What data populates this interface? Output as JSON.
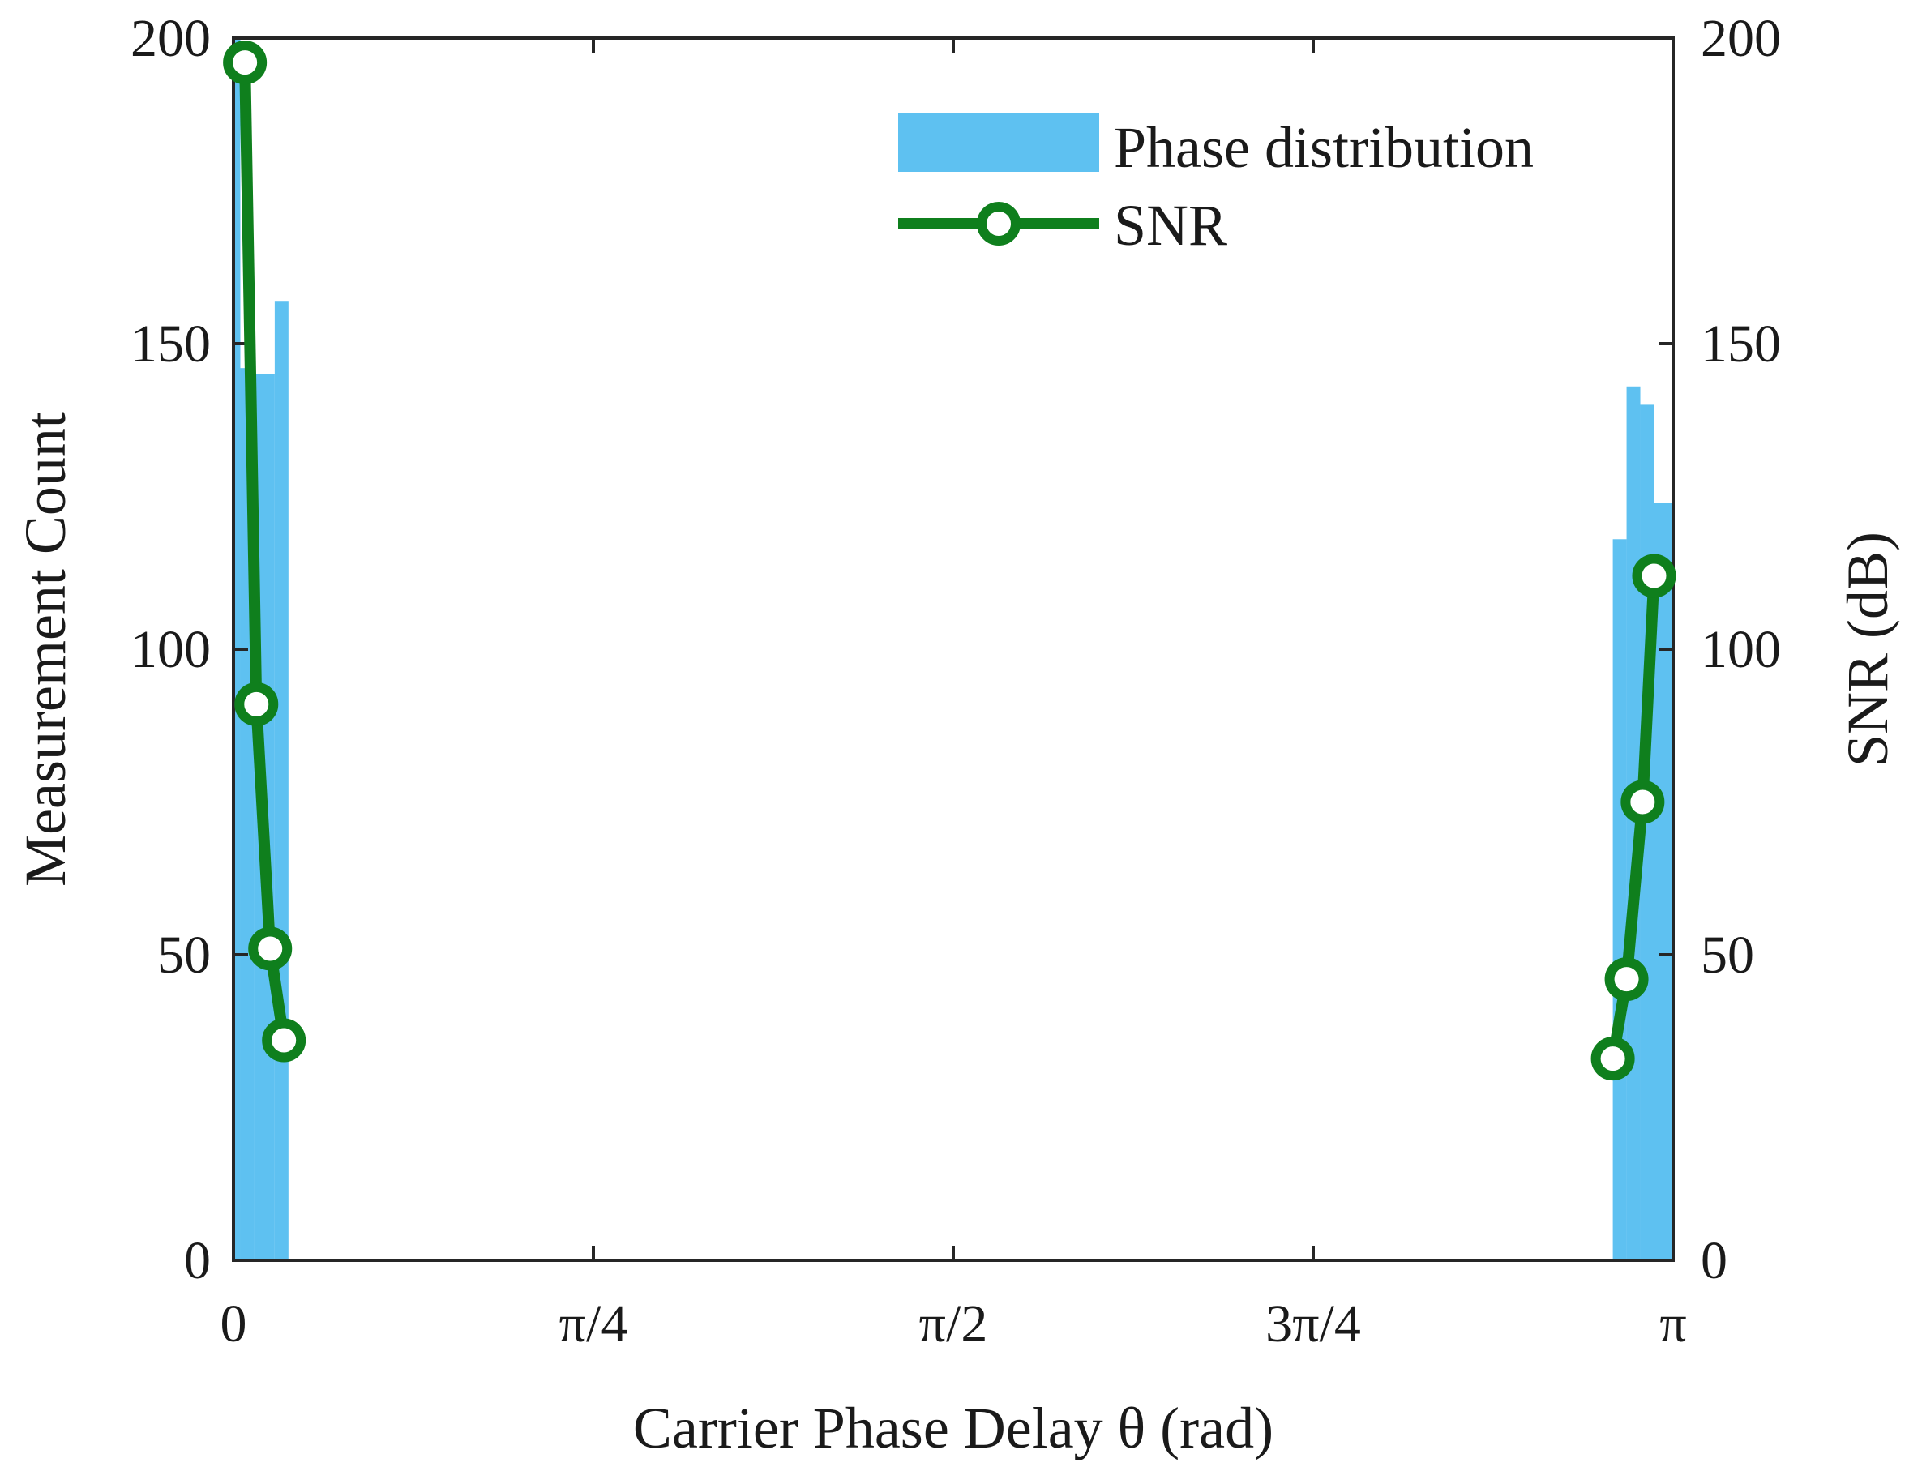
{
  "chart_data": {
    "type": "bar+line",
    "title": "",
    "xlabel": "Carrier Phase Delay θ (rad)",
    "ylabel_left": "Measurement Count",
    "ylabel_right": "SNR (dB)",
    "xlim": [
      0,
      3.14159
    ],
    "ylim_left": [
      0,
      200
    ],
    "ylim_right": [
      0,
      200
    ],
    "x_ticks": [
      {
        "value": 0,
        "label": "0"
      },
      {
        "value": 0.7854,
        "label": "π/4"
      },
      {
        "value": 1.5708,
        "label": "π/2"
      },
      {
        "value": 2.3562,
        "label": "3π/4"
      },
      {
        "value": 3.14159,
        "label": "π"
      }
    ],
    "y_ticks_left": [
      {
        "value": 0,
        "label": "0"
      },
      {
        "value": 50,
        "label": "50"
      },
      {
        "value": 100,
        "label": "100"
      },
      {
        "value": 150,
        "label": "150"
      },
      {
        "value": 200,
        "label": "200"
      }
    ],
    "y_ticks_right": [
      {
        "value": 0,
        "label": "0"
      },
      {
        "value": 50,
        "label": "50"
      },
      {
        "value": 100,
        "label": "100"
      },
      {
        "value": 150,
        "label": "150"
      },
      {
        "value": 200,
        "label": "200"
      }
    ],
    "histogram": {
      "name": "Phase distribution",
      "color": "#5ec1f1",
      "bin_width": 0.03,
      "bins": [
        {
          "x0": 0.0,
          "x1": 0.015,
          "count": 200
        },
        {
          "x0": 0.015,
          "x1": 0.045,
          "count": 146
        },
        {
          "x0": 0.045,
          "x1": 0.09,
          "count": 145
        },
        {
          "x0": 0.09,
          "x1": 0.12,
          "count": 157
        },
        {
          "x0": 3.01,
          "x1": 3.04,
          "count": 118
        },
        {
          "x0": 3.04,
          "x1": 3.07,
          "count": 143
        },
        {
          "x0": 3.07,
          "x1": 3.1,
          "count": 140
        },
        {
          "x0": 3.1,
          "x1": 3.1416,
          "count": 124
        }
      ]
    },
    "series": [
      {
        "name": "SNR",
        "color": "#0f7f1d",
        "axis": "right",
        "segments": [
          {
            "x": [
              0.025,
              0.05,
              0.08,
              0.11
            ],
            "y": [
              196,
              91,
              51,
              36
            ]
          },
          {
            "x": [
              3.01,
              3.04,
              3.075,
              3.1
            ],
            "y": [
              33,
              46,
              75,
              112
            ]
          }
        ]
      }
    ],
    "legend": {
      "position": "top-right",
      "entries": [
        {
          "label": "Phase distribution",
          "kind": "bar"
        },
        {
          "label": "SNR",
          "kind": "line-marker"
        }
      ]
    },
    "grid": false
  }
}
